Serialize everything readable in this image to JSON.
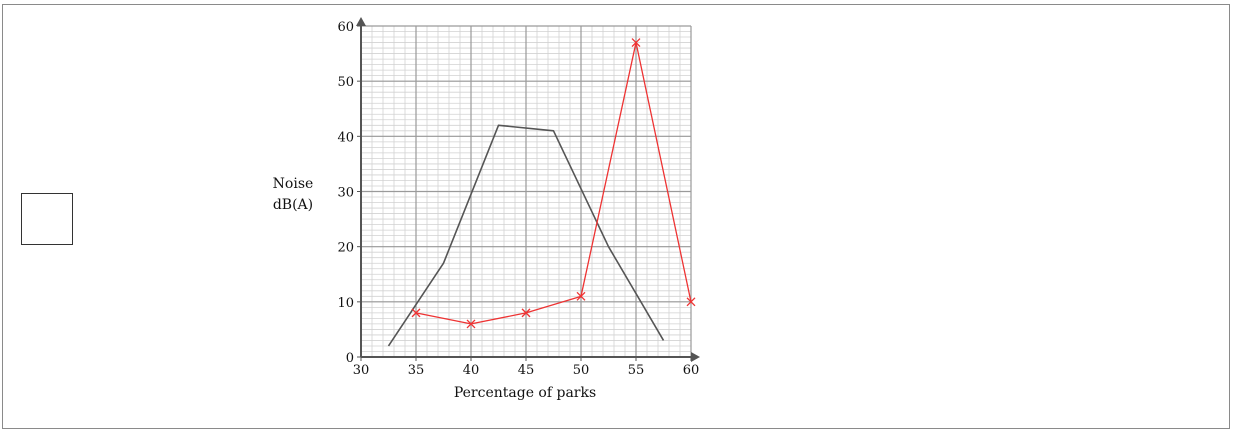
{
  "answer_box": {
    "label": ""
  },
  "chart_data": {
    "type": "line",
    "title": "",
    "xlabel": "Percentage of parks",
    "ylabel_lines": [
      "Noise",
      "dB(A)"
    ],
    "xlim": [
      30,
      60
    ],
    "ylim": [
      0,
      60
    ],
    "x_ticks": [
      30,
      35,
      40,
      45,
      50,
      55,
      60
    ],
    "y_ticks": [
      0,
      10,
      20,
      30,
      40,
      50,
      60
    ],
    "minor_grid_step": 1,
    "major_grid_step_x": 5,
    "major_grid_step_y": 10,
    "grid": true,
    "legend": "none",
    "series": [
      {
        "color": "#555555",
        "markers": false,
        "points": [
          [
            32.5,
            2
          ],
          [
            37.5,
            17
          ],
          [
            42.5,
            42
          ],
          [
            47.5,
            41
          ],
          [
            52.5,
            20
          ],
          [
            57.5,
            3
          ]
        ]
      },
      {
        "color": "#ee3333",
        "markers": true,
        "marker": "x",
        "points": [
          [
            35,
            8
          ],
          [
            40,
            6
          ],
          [
            45,
            8
          ],
          [
            50,
            11
          ],
          [
            55,
            57
          ],
          [
            60,
            10
          ]
        ]
      }
    ]
  }
}
